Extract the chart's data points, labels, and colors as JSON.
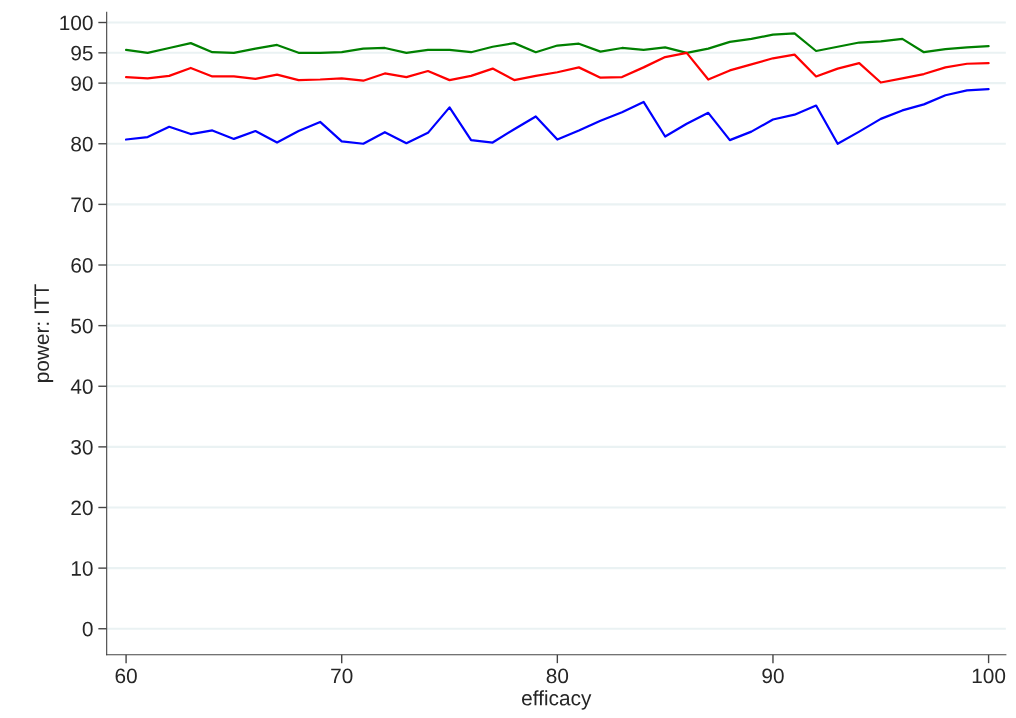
{
  "chart_data": {
    "type": "line",
    "xlabel": "efficacy",
    "ylabel": "power: ITT",
    "x": [
      60,
      61,
      62,
      63,
      64,
      65,
      66,
      67,
      68,
      69,
      70,
      71,
      72,
      73,
      74,
      75,
      76,
      77,
      78,
      79,
      80,
      81,
      82,
      83,
      84,
      85,
      86,
      87,
      88,
      89,
      90,
      91,
      92,
      93,
      94,
      95,
      96,
      97,
      98,
      99,
      100
    ],
    "series": [
      {
        "color": "#008000",
        "values": [
          95.5,
          95,
          95.8,
          96.6,
          95.1,
          95,
          95.7,
          96.3,
          95,
          95,
          95.1,
          95.7,
          95.8,
          95,
          95.5,
          95.5,
          95.1,
          96,
          96.6,
          95.1,
          96.2,
          96.5,
          95.2,
          95.8,
          95.5,
          95.9,
          95,
          95.7,
          96.8,
          97.3,
          98,
          98.2,
          95.3,
          96,
          96.7,
          96.9,
          97.3,
          95.1,
          95.6,
          95.9,
          96.1
        ]
      },
      {
        "color": "#ff0000",
        "values": [
          91,
          90.8,
          91.2,
          92.5,
          91.1,
          91.1,
          90.7,
          91.4,
          90.5,
          90.6,
          90.8,
          90.4,
          91.6,
          91,
          92,
          90.5,
          91.2,
          92.4,
          90.5,
          91.2,
          91.8,
          92.6,
          90.9,
          91,
          92.6,
          94.3,
          95,
          90.6,
          92.1,
          93.1,
          94.1,
          94.7,
          91.1,
          92.4,
          93.3,
          90.1,
          90.8,
          91.5,
          92.6,
          93.2,
          93.3
        ]
      },
      {
        "color": "#0000ff",
        "values": [
          80.7,
          81.1,
          82.8,
          81.6,
          82.2,
          80.8,
          82.1,
          80.2,
          82.1,
          83.6,
          80.4,
          80,
          81.9,
          80.1,
          81.8,
          86,
          80.6,
          80.2,
          82.4,
          84.5,
          80.7,
          82.2,
          83.8,
          85.2,
          86.9,
          81.2,
          83.3,
          85.1,
          80.6,
          82,
          84,
          84.8,
          86.3,
          80,
          82,
          84.1,
          85.5,
          86.5,
          88,
          88.8,
          89
        ]
      }
    ],
    "xlim": [
      59.1,
      100.8
    ],
    "xticks": [
      60,
      70,
      80,
      90,
      100
    ],
    "ylim": [
      -4.3,
      101.7
    ],
    "yticks": [
      0,
      10,
      20,
      30,
      40,
      50,
      60,
      70,
      80,
      90,
      95,
      100
    ],
    "grid": "y",
    "legend": false
  }
}
